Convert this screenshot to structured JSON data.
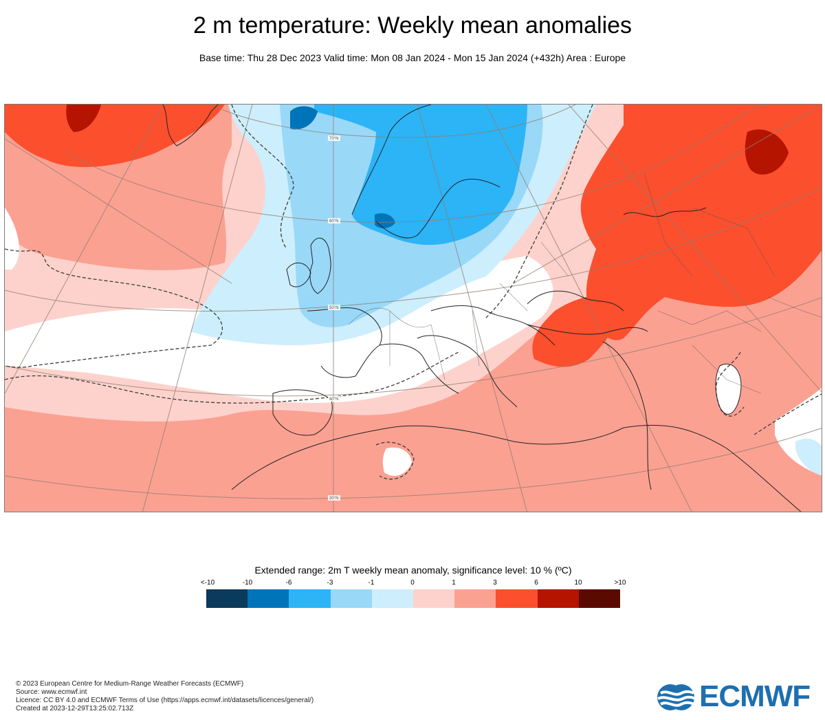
{
  "header": {
    "title": "2 m temperature: Weekly mean anomalies",
    "subtitle": "Base time: Thu 28 Dec 2023 Valid time: Mon 08 Jan 2024 - Mon 15 Jan 2024 (+432h) Area : Europe"
  },
  "map": {
    "latitude_labels": [
      "70°N",
      "60°N",
      "50°N",
      "40°N",
      "30°N"
    ],
    "colors": {
      "anom_m10": "#0a3a5c",
      "anom_m6": "#0074b8",
      "anom_m3": "#2cb4f6",
      "anom_m1": "#9ad8f8",
      "anom_0": "#cdeefc",
      "anom_p1": "#fed2cc",
      "anom_p3": "#fba192",
      "anom_p6": "#fb4f2e",
      "anom_p10": "#b41400",
      "anom_gt10": "#5a0a00"
    }
  },
  "legend": {
    "title": "Extended range: 2m T weekly mean anomaly, significance level: 10 % (ºC)",
    "labels": [
      "<-10",
      "-10",
      "-6",
      "-3",
      "-1",
      "0",
      "1",
      "3",
      "6",
      "10",
      ">10"
    ],
    "colors": [
      "#0a3a5c",
      "#0074b8",
      "#2cb4f6",
      "#9ad8f8",
      "#cdeefc",
      "#fed2cc",
      "#fba192",
      "#fb4f2e",
      "#b41400",
      "#5a0a00"
    ]
  },
  "footer": {
    "lines": [
      "© 2023 European Centre for Medium-Range Weather Forecasts (ECMWF)",
      "Source: www.ecmwf.int",
      "Licence: CC BY 4.0 and ECMWF Terms of Use (https://apps.ecmwf.int/datasets/licences/general/)",
      "Created at 2023-12-29T13:25:02.713Z"
    ],
    "logo_text": "ECMWF"
  }
}
